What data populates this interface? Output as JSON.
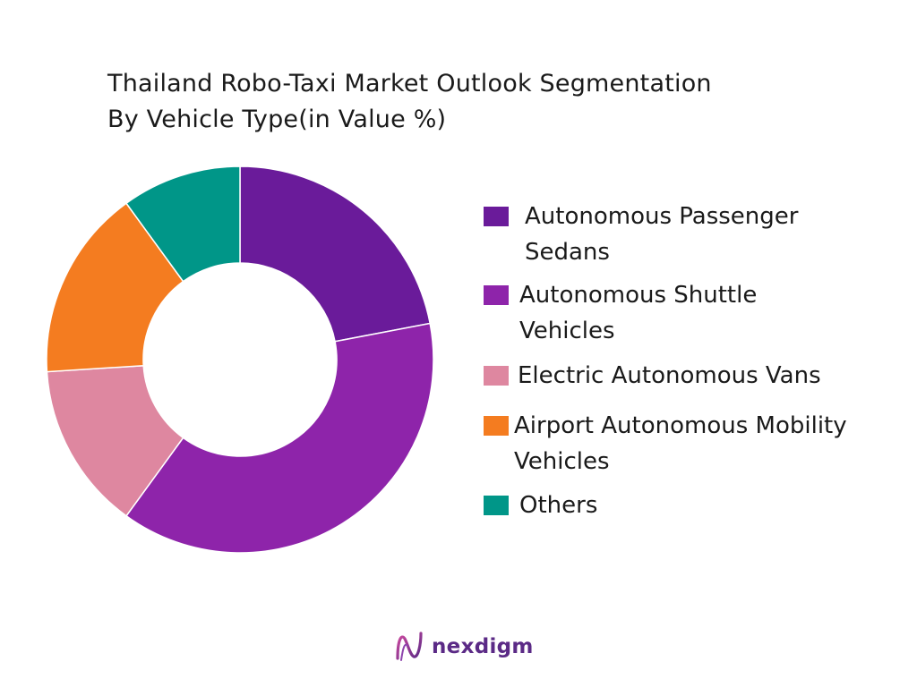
{
  "chart_data": {
    "type": "pie",
    "title": "Thailand Robo-Taxi Market Outlook Segmentation",
    "subtitle": "By Vehicle Type(in Value %)",
    "categories": [
      "Autonomous Passenger Sedans",
      "Autonomous Shuttle Vehicles",
      "Electric Autonomous Vans",
      "Airport Autonomous Mobility Vehicles",
      "Others"
    ],
    "values": [
      22,
      38,
      14,
      16,
      10
    ],
    "colors": [
      "#6a1b9a",
      "#8e24aa",
      "#de87a0",
      "#f47c20",
      "#009688"
    ],
    "legend_position": "right"
  },
  "legend": [
    {
      "line1": "Autonomous Passenger",
      "line2": "Sedans"
    },
    {
      "line1": "Autonomous Shuttle",
      "line2": "Vehicles"
    },
    {
      "line1": "Electric Autonomous Vans",
      "line2": ""
    },
    {
      "line1": "Airport Autonomous Mobility",
      "line2": "Vehicles"
    },
    {
      "line1": "Others",
      "line2": ""
    }
  ],
  "logo": {
    "text": "nexdigm",
    "icon": "nexdigm-logo-icon"
  }
}
